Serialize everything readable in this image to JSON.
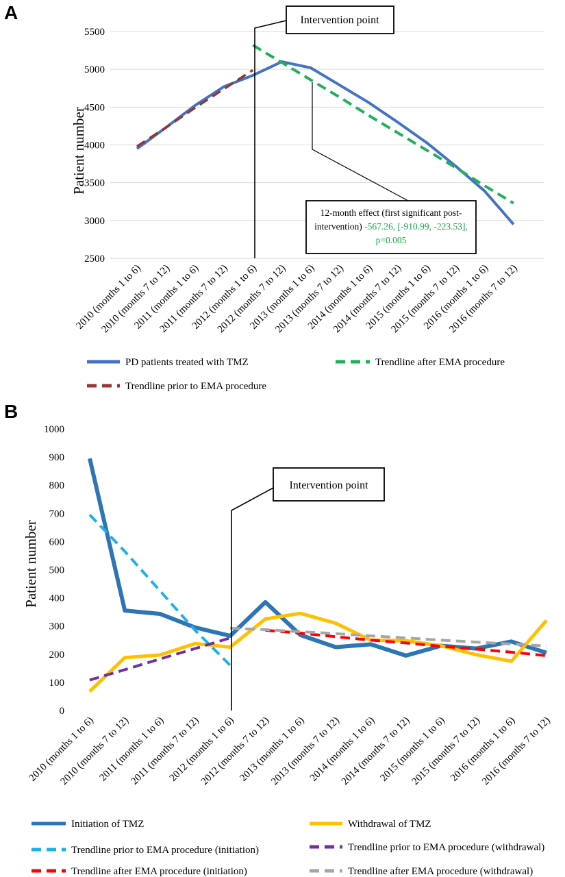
{
  "chart_data": [
    {
      "panel": "A",
      "type": "line",
      "ylabel": "Patient number",
      "ylim": [
        2500,
        5500
      ],
      "yticks": [
        2500,
        3000,
        3500,
        4000,
        4500,
        5000,
        5500
      ],
      "grid": true,
      "categories": [
        "2010 (months 1 to 6)",
        "2010 (months 7 to 12)",
        "2011 (months 1 to 6)",
        "2011 (months 7 to 12)",
        "2012 (months 1 to 6)",
        "2012 (months 7 to 12)",
        "2013 (months 1 to 6)",
        "2013 (months 7 to 12)",
        "2014 (months 1 to 6)",
        "2014 (months 7 to 12)",
        "2015 (months 1 to 6)",
        "2015 (months 7 to 12)",
        "2016 (months 1 to 6)",
        "2016 (months 7 to 12)"
      ],
      "series": [
        {
          "name": "PD patients treated with TMZ",
          "color": "#4472c4",
          "style": "solid",
          "values": [
            3950,
            4230,
            4520,
            4770,
            4920,
            5100,
            5020,
            4790,
            4560,
            4300,
            4030,
            3720,
            3390,
            2950
          ]
        },
        {
          "name": "Trendline prior to EMA procedure",
          "color": "#943634",
          "style": "dashed",
          "values": [
            3980,
            4230,
            4490,
            4740,
            4990,
            null,
            null,
            null,
            null,
            null,
            null,
            null,
            null,
            null
          ]
        },
        {
          "name": "Trendline after EMA procedure",
          "color": "#1fb15a",
          "style": "dashed",
          "values": [
            null,
            null,
            null,
            null,
            5320,
            5090,
            4860,
            4630,
            4390,
            4160,
            3930,
            3700,
            3460,
            3230
          ]
        }
      ],
      "legend": [
        {
          "label": "PD patients treated with TMZ",
          "color": "#4472c4",
          "style": "solid"
        },
        {
          "label": "Trendline after EMA procedure",
          "color": "#1fb15a",
          "style": "dashed"
        },
        {
          "label": "Trendline prior to EMA procedure",
          "color": "#943634",
          "style": "dashed"
        }
      ],
      "intervention_index": 4,
      "annotations": {
        "intervention": "Intervention point",
        "effect_line1": "12-month effect (first significant post-",
        "effect_line2_black": "intervention) ",
        "effect_line2_green": "-567.26, [-910.99, -223.53],",
        "effect_line3_green": "p=0.005"
      }
    },
    {
      "panel": "B",
      "type": "line",
      "ylabel": "Patient number",
      "ylim": [
        0,
        1000
      ],
      "yticks": [
        0,
        100,
        200,
        300,
        400,
        500,
        600,
        700,
        800,
        900,
        1000
      ],
      "grid": false,
      "categories": [
        "2010 (months 1 to 6)",
        "2010 (months 7 to 12)",
        "2011 (months 1 to 6)",
        "2011 (months 7 to 12)",
        "2012 (months 1 to 6)",
        "2012 (months 7 to 12)",
        "2013 (months 1 to 6)",
        "2013 (months 7 to 12)",
        "2014 (months 1 to 6)",
        "2014 (months 7 to 12)",
        "2015 (months 1 to 6)",
        "2015 (months 7 to 12)",
        "2016 (months 1 to 6)",
        "2016 (months 7 to 12)"
      ],
      "series": [
        {
          "name": "Initiation of TMZ",
          "color": "#2e75b6",
          "style": "solid",
          "values": [
            895,
            355,
            343,
            295,
            265,
            385,
            268,
            225,
            235,
            195,
            230,
            220,
            245,
            205
          ]
        },
        {
          "name": "Withdrawal of TMZ",
          "color": "#ffc000",
          "style": "solid",
          "values": [
            68,
            188,
            197,
            238,
            225,
            325,
            345,
            310,
            250,
            248,
            230,
            198,
            175,
            320
          ]
        },
        {
          "name": "Trendline prior to EMA procedure (initiation)",
          "color": "#1fb0e8",
          "style": "dashed",
          "values": [
            695,
            565,
            425,
            285,
            160,
            null,
            null,
            null,
            null,
            null,
            null,
            null,
            null,
            null
          ]
        },
        {
          "name": "Trendline prior to EMA procedure (withdrawal)",
          "color": "#7030a0",
          "style": "dashed",
          "values": [
            108,
            145,
            183,
            220,
            258,
            null,
            null,
            null,
            null,
            null,
            null,
            null,
            null,
            null
          ]
        },
        {
          "name": "Trendline after EMA procedure (initiation)",
          "color": "#ff0000",
          "style": "dashed",
          "values": [
            null,
            null,
            null,
            null,
            null,
            285,
            275,
            262,
            250,
            240,
            228,
            218,
            207,
            195
          ]
        },
        {
          "name": "Trendline after EMA procedure (withdrawal)",
          "color": "#a6a6a6",
          "style": "dashed",
          "values": [
            null,
            null,
            null,
            null,
            292,
            287,
            280,
            273,
            265,
            258,
            250,
            243,
            236,
            229
          ]
        }
      ],
      "legend": [
        {
          "label": "Initiation of TMZ",
          "color": "#2e75b6",
          "style": "solid"
        },
        {
          "label": "Withdrawal of TMZ",
          "color": "#ffc000",
          "style": "solid"
        },
        {
          "label": "Trendline prior to EMA procedure (initiation)",
          "color": "#1fb0e8",
          "style": "dashed"
        },
        {
          "label": "Trendline prior to EMA procedure (withdrawal)",
          "color": "#7030a0",
          "style": "dashed"
        },
        {
          "label": "Trendline after EMA procedure (initiation)",
          "color": "#ff0000",
          "style": "dashed"
        },
        {
          "label": "Trendline after EMA procedure (withdrawal)",
          "color": "#a6a6a6",
          "style": "dashed"
        }
      ],
      "intervention_index": 4,
      "annotations": {
        "intervention": "Intervention point"
      }
    }
  ]
}
